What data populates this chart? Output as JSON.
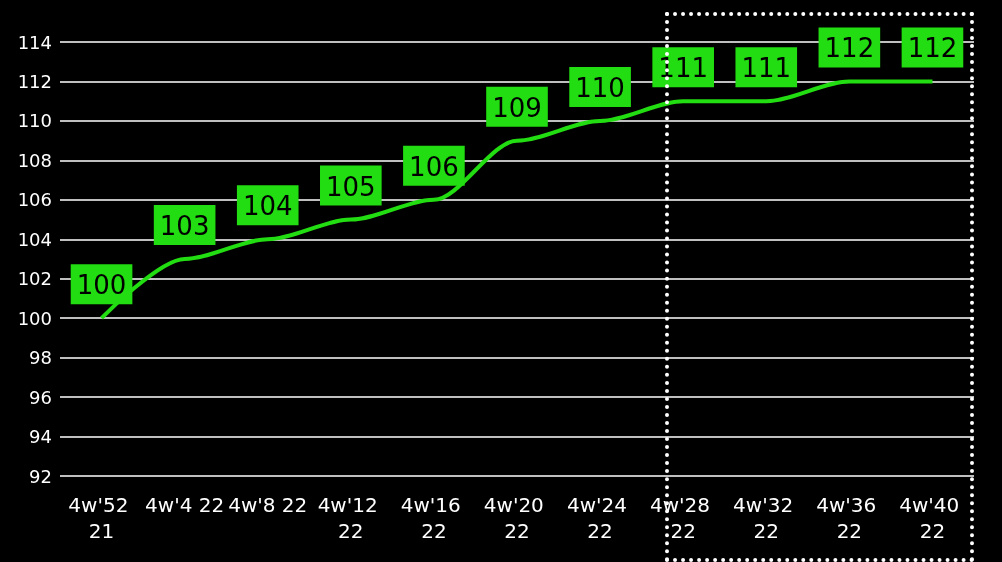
{
  "chart_data": {
    "type": "line",
    "categories": [
      "4w'52 21",
      "4w'4 22",
      "4w'8 22",
      "4w'12 22",
      "4w'16 22",
      "4w'20 22",
      "4w'24 22",
      "4w'28 22",
      "4w'32 22",
      "4w'36 22",
      "4w'40 22"
    ],
    "series": [
      {
        "color": "#22dd11",
        "values": [
          100,
          103,
          104,
          105,
          106,
          109,
          110,
          111,
          111,
          112,
          112
        ]
      }
    ],
    "ylim": [
      92,
      114
    ],
    "yticks": [
      92,
      94,
      96,
      98,
      100,
      102,
      104,
      106,
      108,
      110,
      112,
      114
    ],
    "grid": "y",
    "data_labels": true,
    "marker": "none",
    "line_style": "solid"
  }
}
